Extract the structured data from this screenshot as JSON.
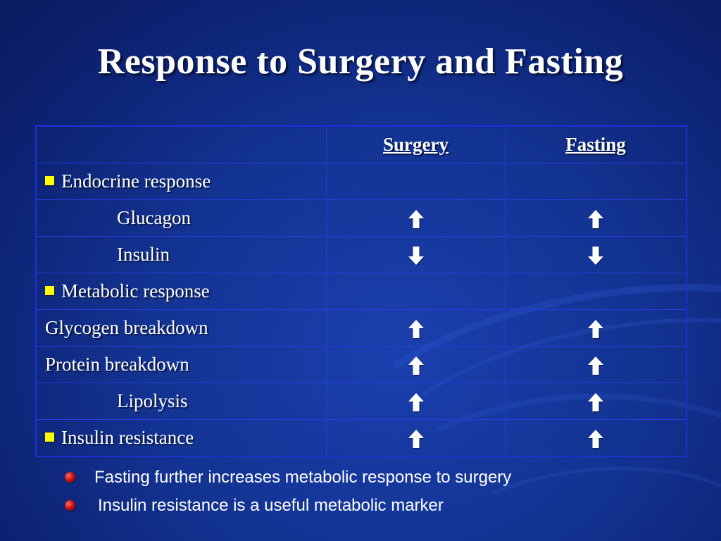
{
  "slide": {
    "title": "Response to Surgery and Fasting"
  },
  "table": {
    "headers": [
      "",
      "Surgery",
      "Fasting"
    ],
    "rows": [
      {
        "label": "Endocrine response",
        "bullet": true,
        "indent": false,
        "surgery": "",
        "fasting": ""
      },
      {
        "label": "Glucagon",
        "bullet": false,
        "indent": true,
        "surgery": "up-arrow",
        "fasting": "up-arrow"
      },
      {
        "label": "Insulin",
        "bullet": false,
        "indent": true,
        "surgery": "down-arrow",
        "fasting": "down-arrow"
      },
      {
        "label": "Metabolic response",
        "bullet": true,
        "indent": false,
        "surgery": "",
        "fasting": ""
      },
      {
        "label": "Glycogen breakdown",
        "bullet": false,
        "indent": false,
        "surgery": "up-arrow",
        "fasting": "up-arrow"
      },
      {
        "label": "Protein breakdown",
        "bullet": false,
        "indent": false,
        "surgery": "up-arrow",
        "fasting": "up-arrow"
      },
      {
        "label": "Lipolysis",
        "bullet": false,
        "indent": true,
        "surgery": "up-arrow",
        "fasting": "up-arrow"
      },
      {
        "label": "Insulin resistance",
        "bullet": true,
        "indent": false,
        "surgery": "up-arrow",
        "fasting": "up-arrow"
      }
    ]
  },
  "bullets": [
    "Fasting further increases metabolic response to surgery",
    "Insulin resistance is a useful metabolic marker"
  ],
  "colors": {
    "background": "#133392",
    "grid_line": "#2a3ae0",
    "row_bullet": "#ffff00",
    "list_bullet": "#d11414",
    "text": "#ffffff"
  }
}
